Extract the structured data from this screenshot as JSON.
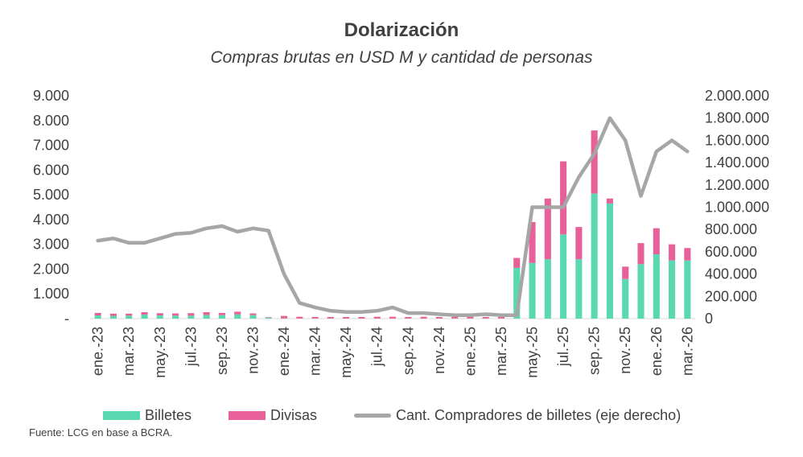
{
  "title": "Dolarización",
  "subtitle": "Compras brutas en USD M y cantidad de personas",
  "source": "Fuente: LCG en base a BCRA.",
  "legend": {
    "billetes": "Billetes",
    "divisas": "Divisas",
    "line": "Cant. Compradores de billetes (eje derecho)"
  },
  "colors": {
    "billetes": "#5ad8b2",
    "divisas": "#e8609a",
    "line": "#a6a6a6"
  },
  "chart_data": {
    "type": "bar",
    "title": "Dolarización",
    "subtitle": "Compras brutas en USD M y cantidad de personas",
    "categories": [
      "ene.-23",
      "feb.-23",
      "mar.-23",
      "abr.-23",
      "may.-23",
      "jun.-23",
      "jul.-23",
      "ago.-23",
      "sep.-23",
      "oct.-23",
      "nov.-23",
      "dic.-23",
      "ene.-24",
      "feb.-24",
      "mar.-24",
      "abr.-24",
      "may.-24",
      "jun.-24",
      "jul.-24",
      "ago.-24",
      "sep.-24",
      "oct.-24",
      "nov.-24",
      "dic.-24",
      "ene.-25",
      "feb.-25",
      "mar.-25",
      "abr.-25",
      "may.-25",
      "jun.-25",
      "jul.-25",
      "ago.-25",
      "sep.-25",
      "oct.-25",
      "nov.-25",
      "dic.-25",
      "ene.-26",
      "feb.-26",
      "mar.-26"
    ],
    "x_tick_labels": [
      "ene.-23",
      "mar.-23",
      "may.-23",
      "jul.-23",
      "sep.-23",
      "nov.-23",
      "ene.-24",
      "mar.-24",
      "may.-24",
      "jul.-24",
      "sep.-24",
      "nov.-24",
      "ene.-25",
      "mar.-25",
      "may.-25",
      "jul.-25",
      "sep.-25",
      "nov.-25",
      "ene.-26",
      "mar.-26"
    ],
    "y_left_ticks": [
      "-",
      "1.000",
      "2.000",
      "3.000",
      "4.000",
      "5.000",
      "6.000",
      "7.000",
      "8.000",
      "9.000"
    ],
    "y_right_ticks": [
      "0",
      "200.000",
      "400.000",
      "600.000",
      "800.000",
      "1.000.000",
      "1.200.000",
      "1.400.000",
      "1.600.000",
      "1.800.000",
      "2.000.000"
    ],
    "ylim_left": [
      0,
      9000
    ],
    "ylim_right": [
      0,
      2000000
    ],
    "stacked": true,
    "series": [
      {
        "name": "Billetes",
        "axis": "left",
        "type": "bar",
        "values": [
          130,
          110,
          120,
          160,
          130,
          120,
          120,
          150,
          140,
          170,
          140,
          40,
          10,
          5,
          5,
          5,
          5,
          5,
          5,
          5,
          5,
          5,
          5,
          5,
          5,
          5,
          5,
          2050,
          2250,
          2400,
          3400,
          2400,
          5050,
          4650,
          1600,
          2200,
          2600,
          2350,
          2350
        ]
      },
      {
        "name": "Divisas",
        "axis": "left",
        "type": "bar",
        "values": [
          100,
          90,
          80,
          100,
          90,
          90,
          100,
          110,
          90,
          110,
          70,
          20,
          100,
          70,
          60,
          60,
          60,
          60,
          70,
          70,
          60,
          70,
          60,
          60,
          70,
          60,
          60,
          400,
          1650,
          2450,
          2950,
          1300,
          2550,
          200,
          500,
          850,
          1050,
          650,
          500
        ]
      },
      {
        "name": "Cant. Compradores de billetes (eje derecho)",
        "axis": "right",
        "type": "line",
        "values": [
          700000,
          720000,
          680000,
          680000,
          720000,
          760000,
          770000,
          810000,
          830000,
          780000,
          810000,
          790000,
          400000,
          140000,
          100000,
          70000,
          60000,
          60000,
          70000,
          100000,
          50000,
          50000,
          40000,
          30000,
          30000,
          40000,
          30000,
          30000,
          1000000,
          1000000,
          1000000,
          1270000,
          1480000,
          1800000,
          1600000,
          1100000,
          1500000,
          1600000,
          1500000
        ]
      }
    ]
  }
}
